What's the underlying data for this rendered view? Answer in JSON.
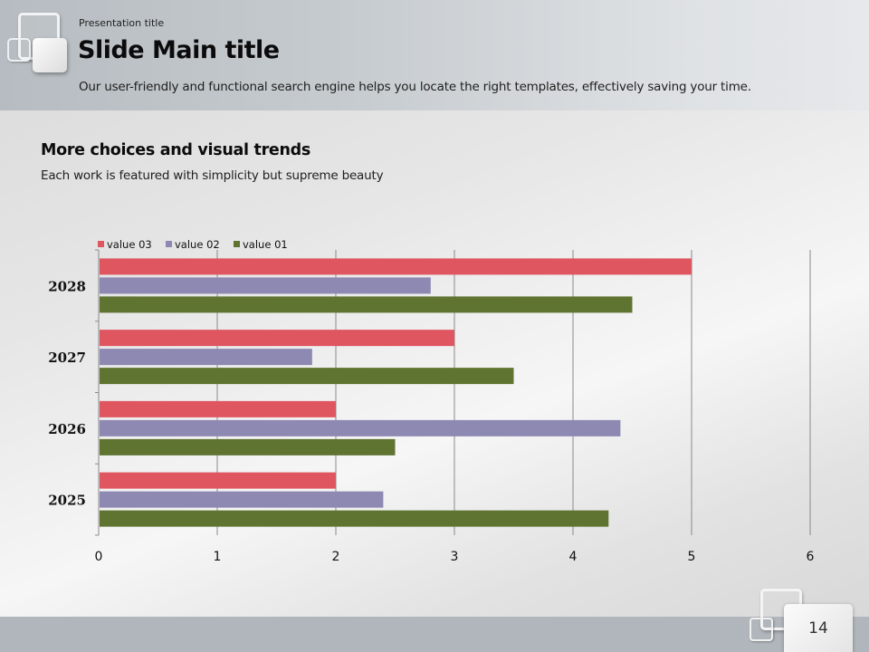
{
  "header": {
    "presentation_title": "Presentation title",
    "main_title": "Slide Main title",
    "subtitle": "Our user-friendly and functional search engine helps you locate the right templates, effectively saving your time."
  },
  "section": {
    "title": "More choices and visual trends",
    "subtitle": "Each work is featured with simplicity but supreme beauty"
  },
  "footer": {
    "page_number": "14"
  },
  "colors": {
    "value03": "#df5660",
    "value02": "#8d89b2",
    "value01": "#5f7430",
    "grid": "#8a8a8a"
  },
  "chart_data": {
    "type": "bar",
    "orientation": "horizontal",
    "categories": [
      "2028",
      "2027",
      "2026",
      "2025"
    ],
    "series": [
      {
        "name": "value 03",
        "values": [
          5,
          3,
          2,
          2
        ]
      },
      {
        "name": "value 02",
        "values": [
          2.8,
          1.8,
          4.4,
          2.4
        ]
      },
      {
        "name": "value 01",
        "values": [
          4.5,
          3.5,
          2.5,
          4.3
        ]
      }
    ],
    "xlim": [
      0,
      6
    ],
    "xticks": [
      "0",
      "1",
      "2",
      "3",
      "4",
      "5",
      "6"
    ],
    "grid": true,
    "legend": "top-left",
    "title": "",
    "xlabel": "",
    "ylabel": ""
  }
}
